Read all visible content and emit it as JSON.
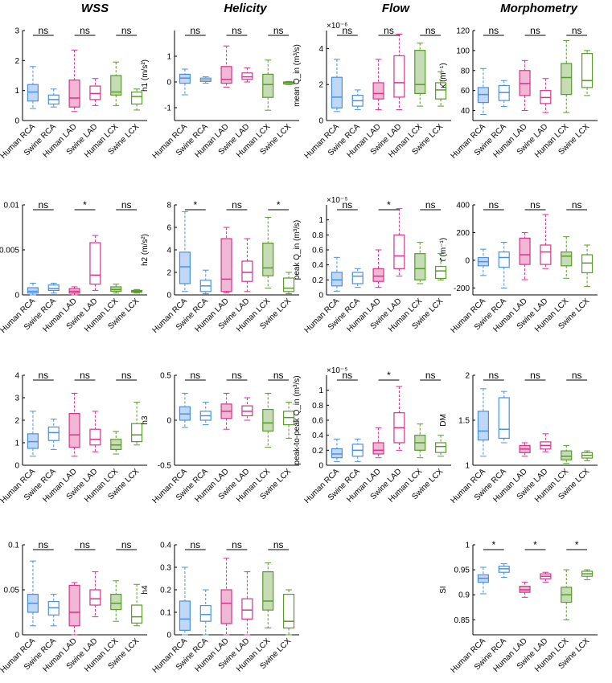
{
  "column_titles": [
    "WSS",
    "Helicity",
    "Flow",
    "Morphometry"
  ],
  "categories": [
    "Human RCA",
    "Swine RCA",
    "Human LAD",
    "Swine LAD",
    "Human LCX",
    "Swine LCX"
  ],
  "colors": [
    "#4a90e2",
    "#4a90e2",
    "#d6338a",
    "#d6338a",
    "#5a9a2c",
    "#5a9a2c"
  ],
  "chart_data": [
    {
      "id": "tawss",
      "type": "box",
      "ylabel": "TAWSS (Pa)",
      "ylim": [
        0,
        3
      ],
      "yticks": [
        0,
        1,
        2,
        3
      ],
      "ytick_labels": [
        "0",
        "1",
        "2",
        "3"
      ],
      "sig": [
        "ns",
        "ns",
        "ns"
      ],
      "boxes": [
        {
          "min": 0.4,
          "q1": 0.65,
          "med": 0.95,
          "q3": 1.2,
          "max": 1.8
        },
        {
          "min": 0.45,
          "q1": 0.55,
          "med": 0.7,
          "q3": 0.85,
          "max": 1.05
        },
        {
          "min": 0.3,
          "q1": 0.45,
          "med": 0.75,
          "q3": 1.35,
          "max": 2.35
        },
        {
          "min": 0.5,
          "q1": 0.7,
          "med": 0.9,
          "q3": 1.15,
          "max": 1.4
        },
        {
          "min": 0.5,
          "q1": 0.85,
          "med": 0.95,
          "q3": 1.5,
          "max": 1.95
        },
        {
          "min": 0.35,
          "q1": 0.55,
          "med": 0.8,
          "q3": 0.95,
          "max": 1.05
        }
      ]
    },
    {
      "id": "h1",
      "type": "box",
      "ylabel": "h1 (m/s²)",
      "ylim": [
        -1.5,
        2
      ],
      "yticks": [
        -1,
        0,
        1
      ],
      "ytick_labels": [
        "-1",
        "0",
        "1"
      ],
      "sig": [
        "ns",
        "ns",
        "ns"
      ],
      "boxes": [
        {
          "min": -0.5,
          "q1": -0.05,
          "med": 0.15,
          "q3": 0.3,
          "max": 0.5
        },
        {
          "min": -0.05,
          "q1": 0.02,
          "med": 0.08,
          "q3": 0.15,
          "max": 0.2
        },
        {
          "min": -0.2,
          "q1": -0.05,
          "med": 0.1,
          "q3": 0.6,
          "max": 1.4
        },
        {
          "min": 0.0,
          "q1": 0.1,
          "med": 0.2,
          "q3": 0.35,
          "max": 0.55
        },
        {
          "min": -1.1,
          "q1": -0.6,
          "med": -0.1,
          "q3": 0.3,
          "max": 0.85
        },
        {
          "min": -0.1,
          "q1": -0.08,
          "med": -0.03,
          "q3": 0.0,
          "max": 0.02
        }
      ]
    },
    {
      "id": "meanq",
      "type": "box",
      "ylabel": "mean Q_in (m³/s)",
      "exponent": "×10⁻⁶",
      "ylim": [
        0,
        5
      ],
      "yticks": [
        0,
        2,
        4
      ],
      "ytick_labels": [
        "0",
        "2",
        "4"
      ],
      "sig": [
        "ns",
        "ns",
        "ns"
      ],
      "boxes": [
        {
          "min": 0.5,
          "q1": 0.7,
          "med": 1.3,
          "q3": 2.4,
          "max": 3.4
        },
        {
          "min": 0.6,
          "q1": 0.8,
          "med": 1.1,
          "q3": 1.4,
          "max": 1.7
        },
        {
          "min": 0.6,
          "q1": 1.2,
          "med": 1.5,
          "q3": 2.1,
          "max": 3.4
        },
        {
          "min": 0.6,
          "q1": 1.3,
          "med": 2.1,
          "q3": 3.6,
          "max": 4.8
        },
        {
          "min": 0.8,
          "q1": 1.5,
          "med": 2.0,
          "q3": 3.9,
          "max": 4.3
        },
        {
          "min": 0.8,
          "q1": 1.2,
          "med": 1.7,
          "q3": 2.1,
          "max": 2.7
        }
      ]
    },
    {
      "id": "kappa",
      "type": "box",
      "ylabel": "κ̄ (m⁻¹)",
      "ylim": [
        30,
        120
      ],
      "yticks": [
        40,
        60,
        80,
        100,
        120
      ],
      "ytick_labels": [
        "40",
        "60",
        "80",
        "100",
        "120"
      ],
      "sig": [
        "ns",
        "ns",
        "ns"
      ],
      "boxes": [
        {
          "min": 36,
          "q1": 48,
          "med": 56,
          "q3": 63,
          "max": 82
        },
        {
          "min": 44,
          "q1": 50,
          "med": 58,
          "q3": 65,
          "max": 70
        },
        {
          "min": 40,
          "q1": 55,
          "med": 67,
          "q3": 80,
          "max": 90
        },
        {
          "min": 38,
          "q1": 47,
          "med": 53,
          "q3": 60,
          "max": 72
        },
        {
          "min": 38,
          "q1": 56,
          "med": 73,
          "q3": 87,
          "max": 110
        },
        {
          "min": 55,
          "q1": 63,
          "med": 70,
          "q3": 97,
          "max": 100
        }
      ]
    },
    {
      "id": "osi",
      "type": "box",
      "ylabel": "OSI",
      "ylim": [
        0,
        0.01
      ],
      "yticks": [
        0,
        0.005,
        0.01
      ],
      "ytick_labels": [
        "0",
        "0.005",
        "0.01"
      ],
      "sig": [
        "ns",
        "*",
        "ns"
      ],
      "boxes": [
        {
          "min": 0.0,
          "q1": 0.0002,
          "med": 0.0004,
          "q3": 0.0008,
          "max": 0.0013
        },
        {
          "min": 0.0002,
          "q1": 0.0005,
          "med": 0.0007,
          "q3": 0.0011,
          "max": 0.0013
        },
        {
          "min": 0.0,
          "q1": 0.0002,
          "med": 0.0004,
          "q3": 0.0007,
          "max": 0.0009
        },
        {
          "min": 0.0005,
          "q1": 0.0012,
          "med": 0.0022,
          "q3": 0.0058,
          "max": 0.0066
        },
        {
          "min": 0.0002,
          "q1": 0.0004,
          "med": 0.0006,
          "q3": 0.0009,
          "max": 0.0012
        },
        {
          "min": 0.0002,
          "q1": 0.0003,
          "med": 0.0004,
          "q3": 0.0005,
          "max": 0.0006
        }
      ]
    },
    {
      "id": "h2",
      "type": "box",
      "ylabel": "h2 (m/s²)",
      "ylim": [
        0,
        8
      ],
      "yticks": [
        0,
        2,
        4,
        6,
        8
      ],
      "ytick_labels": [
        "0",
        "2",
        "4",
        "6",
        "8"
      ],
      "sig": [
        "*",
        "ns",
        "*"
      ],
      "boxes": [
        {
          "min": 0.3,
          "q1": 1.0,
          "med": 2.5,
          "q3": 3.8,
          "max": 7.4
        },
        {
          "min": 0.1,
          "q1": 0.3,
          "med": 0.8,
          "q3": 1.3,
          "max": 2.2
        },
        {
          "min": 0.2,
          "q1": 0.3,
          "med": 1.4,
          "q3": 5.0,
          "max": 6.0
        },
        {
          "min": 0.3,
          "q1": 1.2,
          "med": 2.0,
          "q3": 3.0,
          "max": 5.0
        },
        {
          "min": 0.6,
          "q1": 1.7,
          "med": 2.4,
          "q3": 4.6,
          "max": 6.9
        },
        {
          "min": 0.1,
          "q1": 0.3,
          "med": 0.6,
          "q3": 1.5,
          "max": 2.0
        }
      ]
    },
    {
      "id": "peakq",
      "type": "box",
      "ylabel": "peak Q_in (m³/s)",
      "exponent": "×10⁻⁵",
      "ylim": [
        0,
        1.2
      ],
      "yticks": [
        0,
        0.2,
        0.4,
        0.6,
        0.8,
        1
      ],
      "ytick_labels": [
        "0",
        "0.2",
        "0.4",
        "0.6",
        "0.8",
        "1"
      ],
      "sig": [
        "ns",
        "*",
        "ns"
      ],
      "boxes": [
        {
          "min": 0.05,
          "q1": 0.12,
          "med": 0.2,
          "q3": 0.3,
          "max": 0.5
        },
        {
          "min": 0.1,
          "q1": 0.15,
          "med": 0.25,
          "q3": 0.3,
          "max": 0.35
        },
        {
          "min": 0.1,
          "q1": 0.18,
          "med": 0.25,
          "q3": 0.35,
          "max": 0.6
        },
        {
          "min": 0.25,
          "q1": 0.35,
          "med": 0.52,
          "q3": 0.8,
          "max": 1.15
        },
        {
          "min": 0.15,
          "q1": 0.2,
          "med": 0.35,
          "q3": 0.55,
          "max": 0.7
        },
        {
          "min": 0.2,
          "q1": 0.22,
          "med": 0.32,
          "q3": 0.38,
          "max": 0.55
        }
      ]
    },
    {
      "id": "tau",
      "type": "box",
      "ylabel": "τ̄ (m⁻¹)",
      "ylim": [
        -250,
        400
      ],
      "yticks": [
        -200,
        0,
        200,
        400
      ],
      "ytick_labels": [
        "-200",
        "0",
        "200",
        "400"
      ],
      "sig": [
        "ns",
        "ns",
        "ns"
      ],
      "boxes": [
        {
          "min": -110,
          "q1": -40,
          "med": -10,
          "q3": 20,
          "max": 80
        },
        {
          "min": -200,
          "q1": -50,
          "med": 20,
          "q3": 60,
          "max": 130
        },
        {
          "min": -140,
          "q1": -30,
          "med": 40,
          "q3": 160,
          "max": 200
        },
        {
          "min": -60,
          "q1": -30,
          "med": 60,
          "q3": 110,
          "max": 330
        },
        {
          "min": -130,
          "q1": -40,
          "med": 30,
          "q3": 60,
          "max": 170
        },
        {
          "min": -190,
          "q1": -90,
          "med": -20,
          "q3": 40,
          "max": 110
        }
      ]
    },
    {
      "id": "rrt",
      "type": "box",
      "ylabel": "RRT (Pa⁻¹)",
      "ylim": [
        0,
        4
      ],
      "yticks": [
        0,
        1,
        2,
        3,
        4
      ],
      "ytick_labels": [
        "0",
        "1",
        "2",
        "3",
        "4"
      ],
      "sig": [
        "ns",
        "ns",
        "ns"
      ],
      "boxes": [
        {
          "min": 0.4,
          "q1": 0.75,
          "med": 1.05,
          "q3": 1.4,
          "max": 2.4
        },
        {
          "min": 0.7,
          "q1": 1.1,
          "med": 1.45,
          "q3": 1.7,
          "max": 2.05
        },
        {
          "min": 0.4,
          "q1": 0.8,
          "med": 1.35,
          "q3": 2.3,
          "max": 3.2
        },
        {
          "min": 0.6,
          "q1": 0.9,
          "med": 1.15,
          "q3": 1.6,
          "max": 2.4
        },
        {
          "min": 0.5,
          "q1": 0.7,
          "med": 0.9,
          "q3": 1.15,
          "max": 1.5
        },
        {
          "min": 0.9,
          "q1": 1.05,
          "med": 1.35,
          "q3": 1.85,
          "max": 2.8
        }
      ]
    },
    {
      "id": "h3",
      "type": "box",
      "ylabel": "h3",
      "ylim": [
        -0.5,
        0.5
      ],
      "yticks": [
        -0.5,
        0,
        0.5
      ],
      "ytick_labels": [
        "-0.5",
        "0",
        "0.5"
      ],
      "sig": [
        "ns",
        "ns",
        "ns"
      ],
      "boxes": [
        {
          "min": -0.08,
          "q1": 0.0,
          "med": 0.07,
          "q3": 0.15,
          "max": 0.3
        },
        {
          "min": -0.05,
          "q1": 0.0,
          "med": 0.05,
          "q3": 0.1,
          "max": 0.2
        },
        {
          "min": -0.1,
          "q1": 0.02,
          "med": 0.1,
          "q3": 0.18,
          "max": 0.3
        },
        {
          "min": 0.0,
          "q1": 0.05,
          "med": 0.1,
          "q3": 0.16,
          "max": 0.25
        },
        {
          "min": -0.3,
          "q1": -0.12,
          "med": -0.03,
          "q3": 0.12,
          "max": 0.3
        },
        {
          "min": -0.2,
          "q1": -0.05,
          "med": 0.03,
          "q3": 0.1,
          "max": 0.2
        }
      ]
    },
    {
      "id": "p2pq",
      "type": "box",
      "ylabel": "peak-to-peak Q_in (m³/s)",
      "exponent": "×10⁻⁵",
      "ylim": [
        0,
        1.2
      ],
      "yticks": [
        0,
        0.2,
        0.4,
        0.6,
        0.8,
        1
      ],
      "ytick_labels": [
        "0",
        "0.2",
        "0.4",
        "0.6",
        "0.8",
        "1"
      ],
      "sig": [
        "ns",
        "*",
        "ns"
      ],
      "boxes": [
        {
          "min": 0.05,
          "q1": 0.1,
          "med": 0.15,
          "q3": 0.22,
          "max": 0.35
        },
        {
          "min": 0.05,
          "q1": 0.12,
          "med": 0.2,
          "q3": 0.28,
          "max": 0.35
        },
        {
          "min": 0.1,
          "q1": 0.15,
          "med": 0.2,
          "q3": 0.3,
          "max": 0.5
        },
        {
          "min": 0.2,
          "q1": 0.3,
          "med": 0.5,
          "q3": 0.7,
          "max": 1.05
        },
        {
          "min": 0.1,
          "q1": 0.2,
          "med": 0.3,
          "q3": 0.4,
          "max": 0.55
        },
        {
          "min": 0.12,
          "q1": 0.17,
          "med": 0.25,
          "q3": 0.3,
          "max": 0.4
        }
      ]
    },
    {
      "id": "dm",
      "type": "box",
      "ylabel": "DM",
      "ylim": [
        1,
        2
      ],
      "yticks": [
        1,
        1.5,
        2
      ],
      "ytick_labels": [
        "1",
        "1.5",
        "2"
      ],
      "sig": [
        "ns",
        "ns",
        "ns"
      ],
      "boxes": [
        {
          "min": 1.1,
          "q1": 1.28,
          "med": 1.38,
          "q3": 1.6,
          "max": 1.85
        },
        {
          "min": 1.25,
          "q1": 1.3,
          "med": 1.4,
          "q3": 1.75,
          "max": 1.82
        },
        {
          "min": 1.1,
          "q1": 1.14,
          "med": 1.18,
          "q3": 1.22,
          "max": 1.25
        },
        {
          "min": 1.15,
          "q1": 1.18,
          "med": 1.22,
          "q3": 1.26,
          "max": 1.35
        },
        {
          "min": 1.02,
          "q1": 1.06,
          "med": 1.1,
          "q3": 1.16,
          "max": 1.22
        },
        {
          "min": 1.05,
          "q1": 1.08,
          "med": 1.11,
          "q3": 1.14,
          "max": 1.16
        }
      ]
    },
    {
      "id": "transwss",
      "type": "box",
      "ylabel": "transWSS (Pa)",
      "ylim": [
        0,
        0.1
      ],
      "yticks": [
        0,
        0.05,
        0.1
      ],
      "ytick_labels": [
        "0",
        "0.05",
        "0.1"
      ],
      "sig": [
        "ns",
        "ns",
        "ns"
      ],
      "boxes": [
        {
          "min": 0.01,
          "q1": 0.025,
          "med": 0.035,
          "q3": 0.045,
          "max": 0.082
        },
        {
          "min": 0.01,
          "q1": 0.022,
          "med": 0.03,
          "q3": 0.037,
          "max": 0.045
        },
        {
          "min": 0.0,
          "q1": 0.01,
          "med": 0.025,
          "q3": 0.055,
          "max": 0.058
        },
        {
          "min": 0.02,
          "q1": 0.033,
          "med": 0.04,
          "q3": 0.05,
          "max": 0.07
        },
        {
          "min": 0.015,
          "q1": 0.028,
          "med": 0.035,
          "q3": 0.045,
          "max": 0.06
        },
        {
          "min": 0.01,
          "q1": 0.013,
          "med": 0.02,
          "q3": 0.033,
          "max": 0.056
        }
      ]
    },
    {
      "id": "h4",
      "type": "box",
      "ylabel": "h4",
      "ylim": [
        0,
        0.4
      ],
      "yticks": [
        0,
        0.1,
        0.2,
        0.3,
        0.4
      ],
      "ytick_labels": [
        "0",
        "0.1",
        "0.2",
        "0.3",
        "0.4"
      ],
      "sig": [
        "ns",
        "ns",
        "ns"
      ],
      "boxes": [
        {
          "min": 0.0,
          "q1": 0.02,
          "med": 0.07,
          "q3": 0.15,
          "max": 0.3
        },
        {
          "min": 0.0,
          "q1": 0.06,
          "med": 0.09,
          "q3": 0.13,
          "max": 0.2
        },
        {
          "min": 0.0,
          "q1": 0.05,
          "med": 0.14,
          "q3": 0.2,
          "max": 0.34
        },
        {
          "min": 0.0,
          "q1": 0.07,
          "med": 0.11,
          "q3": 0.16,
          "max": 0.28
        },
        {
          "min": 0.03,
          "q1": 0.11,
          "med": 0.15,
          "q3": 0.28,
          "max": 0.32
        },
        {
          "min": 0.0,
          "q1": 0.03,
          "med": 0.06,
          "q3": 0.18,
          "max": 0.2
        }
      ]
    },
    {
      "id": "si",
      "type": "box",
      "ylabel": "SI",
      "ylim": [
        0.82,
        1
      ],
      "yticks": [
        0.85,
        0.9,
        0.95,
        1
      ],
      "ytick_labels": [
        "0.85",
        "0.9",
        "0.95",
        "1"
      ],
      "sig": [
        "*",
        "*",
        "*"
      ],
      "boxes": [
        {
          "min": 0.902,
          "q1": 0.925,
          "med": 0.933,
          "q3": 0.94,
          "max": 0.955
        },
        {
          "min": 0.935,
          "q1": 0.945,
          "med": 0.952,
          "q3": 0.957,
          "max": 0.962
        },
        {
          "min": 0.895,
          "q1": 0.905,
          "med": 0.91,
          "q3": 0.917,
          "max": 0.925
        },
        {
          "min": 0.925,
          "q1": 0.932,
          "med": 0.937,
          "q3": 0.942,
          "max": 0.945
        },
        {
          "min": 0.85,
          "q1": 0.885,
          "med": 0.9,
          "q3": 0.915,
          "max": 0.95
        },
        {
          "min": 0.93,
          "q1": 0.937,
          "med": 0.942,
          "q3": 0.947,
          "max": 0.95
        }
      ]
    }
  ]
}
